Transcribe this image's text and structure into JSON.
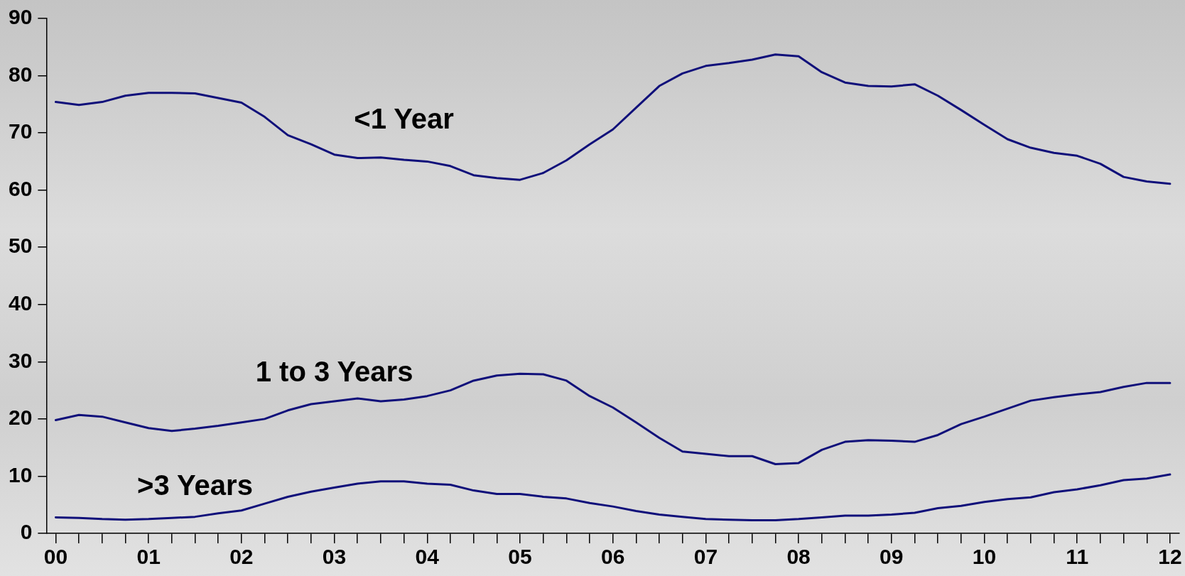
{
  "chart_data": {
    "type": "line",
    "x": [
      0,
      0.25,
      0.5,
      0.75,
      1,
      1.25,
      1.5,
      1.75,
      2,
      2.25,
      2.5,
      2.75,
      3,
      3.25,
      3.5,
      3.75,
      4,
      4.25,
      4.5,
      4.75,
      5,
      5.25,
      5.5,
      5.75,
      6,
      6.25,
      6.5,
      6.75,
      7,
      7.25,
      7.5,
      7.75,
      8,
      8.25,
      8.5,
      8.75,
      9,
      9.25,
      9.5,
      9.75,
      10,
      10.25,
      10.5,
      10.75,
      11,
      11.25,
      11.5,
      11.75,
      12
    ],
    "series": [
      {
        "name": "<1 Year",
        "color": "#10107a",
        "values": [
          75.4,
          74.9,
          75.4,
          76.5,
          77.0,
          77.0,
          76.9,
          76.1,
          75.3,
          72.8,
          69.6,
          68.0,
          66.2,
          65.6,
          65.7,
          65.3,
          65.0,
          64.2,
          62.6,
          62.1,
          61.8,
          63.0,
          65.2,
          68.0,
          70.6,
          74.4,
          78.2,
          80.4,
          81.7,
          82.2,
          82.8,
          83.7,
          83.4,
          80.6,
          78.8,
          78.2,
          78.1,
          78.5,
          76.5,
          74.0,
          71.4,
          68.9,
          67.4,
          66.5,
          66.0,
          64.6,
          62.3,
          61.5,
          61.1
        ]
      },
      {
        "name": "1 to 3 Years",
        "color": "#10107a",
        "values": [
          19.8,
          20.7,
          20.4,
          19.4,
          18.4,
          17.9,
          18.3,
          18.8,
          19.4,
          20.0,
          21.5,
          22.6,
          23.1,
          23.6,
          23.1,
          23.4,
          24.0,
          25.0,
          26.7,
          27.6,
          27.9,
          27.8,
          26.7,
          24.0,
          22.0,
          19.4,
          16.7,
          14.3,
          13.9,
          13.5,
          13.5,
          12.1,
          12.3,
          14.6,
          16.0,
          16.3,
          16.2,
          16.0,
          17.2,
          19.1,
          20.4,
          21.8,
          23.2,
          23.8,
          24.3,
          24.7,
          25.6,
          26.3,
          26.3
        ]
      },
      {
        "name": ">3 Years",
        "color": "#10107a",
        "values": [
          2.8,
          2.7,
          2.5,
          2.4,
          2.5,
          2.7,
          2.9,
          3.5,
          4.0,
          5.2,
          6.4,
          7.3,
          8.0,
          8.7,
          9.1,
          9.1,
          8.7,
          8.5,
          7.5,
          6.9,
          6.9,
          6.4,
          6.1,
          5.3,
          4.7,
          3.9,
          3.3,
          2.9,
          2.5,
          2.4,
          2.3,
          2.3,
          2.5,
          2.8,
          3.1,
          3.1,
          3.3,
          3.6,
          4.4,
          4.8,
          5.5,
          6.0,
          6.3,
          7.2,
          7.7,
          8.4,
          9.3,
          9.6,
          10.3
        ]
      }
    ],
    "xlim": [
      -0.1,
      12.1
    ],
    "xticks": [
      {
        "value": 0,
        "label": "00"
      },
      {
        "value": 0.25,
        "label": null
      },
      {
        "value": 0.5,
        "label": null
      },
      {
        "value": 0.75,
        "label": null
      },
      {
        "value": 1,
        "label": "01"
      },
      {
        "value": 1.25,
        "label": null
      },
      {
        "value": 1.5,
        "label": null
      },
      {
        "value": 1.75,
        "label": null
      },
      {
        "value": 2,
        "label": "02"
      },
      {
        "value": 2.25,
        "label": null
      },
      {
        "value": 2.5,
        "label": null
      },
      {
        "value": 2.75,
        "label": null
      },
      {
        "value": 3,
        "label": "03"
      },
      {
        "value": 3.25,
        "label": null
      },
      {
        "value": 3.5,
        "label": null
      },
      {
        "value": 3.75,
        "label": null
      },
      {
        "value": 4,
        "label": "04"
      },
      {
        "value": 4.25,
        "label": null
      },
      {
        "value": 4.5,
        "label": null
      },
      {
        "value": 4.75,
        "label": null
      },
      {
        "value": 5,
        "label": "05"
      },
      {
        "value": 5.25,
        "label": null
      },
      {
        "value": 5.5,
        "label": null
      },
      {
        "value": 5.75,
        "label": null
      },
      {
        "value": 6,
        "label": "06"
      },
      {
        "value": 6.25,
        "label": null
      },
      {
        "value": 6.5,
        "label": null
      },
      {
        "value": 6.75,
        "label": null
      },
      {
        "value": 7,
        "label": "07"
      },
      {
        "value": 7.25,
        "label": null
      },
      {
        "value": 7.5,
        "label": null
      },
      {
        "value": 7.75,
        "label": null
      },
      {
        "value": 8,
        "label": "08"
      },
      {
        "value": 8.25,
        "label": null
      },
      {
        "value": 8.5,
        "label": null
      },
      {
        "value": 8.75,
        "label": null
      },
      {
        "value": 9,
        "label": "09"
      },
      {
        "value": 9.25,
        "label": null
      },
      {
        "value": 9.5,
        "label": null
      },
      {
        "value": 9.75,
        "label": null
      },
      {
        "value": 10,
        "label": "10"
      },
      {
        "value": 10.25,
        "label": null
      },
      {
        "value": 10.5,
        "label": null
      },
      {
        "value": 10.75,
        "label": null
      },
      {
        "value": 11,
        "label": "11"
      },
      {
        "value": 11.25,
        "label": null
      },
      {
        "value": 11.5,
        "label": null
      },
      {
        "value": 11.75,
        "label": null
      },
      {
        "value": 12,
        "label": "12"
      }
    ],
    "ylim": [
      0,
      90
    ],
    "yticks": [
      0,
      10,
      20,
      30,
      40,
      50,
      60,
      70,
      80,
      90
    ],
    "grid": false,
    "legend": false,
    "marker": "none",
    "line_style": "solid"
  }
}
